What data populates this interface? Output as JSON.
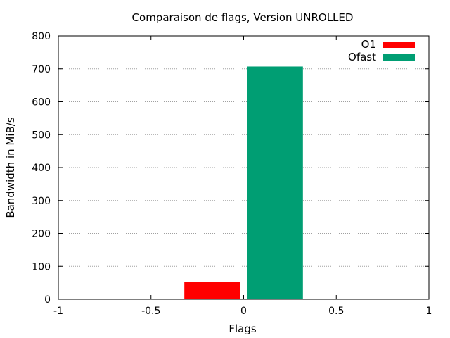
{
  "chart_data": {
    "type": "bar",
    "title": "Comparaison de flags, Version UNROLLED",
    "xlabel": "Flags",
    "ylabel": "Bandwidth in MiB/s",
    "xlim": [
      -1,
      1
    ],
    "ylim": [
      0,
      800
    ],
    "x_ticks": [
      "-1",
      "-0.5",
      "0",
      "0.5",
      "1"
    ],
    "y_ticks": [
      "0",
      "100",
      "200",
      "300",
      "400",
      "500",
      "600",
      "700",
      "800"
    ],
    "grid": "horizontal dotted",
    "legend_position": "top-right",
    "series": [
      {
        "name": "O1",
        "x_start": -0.32,
        "x_end": -0.02,
        "value": 53,
        "color": "#ff0000"
      },
      {
        "name": "Ofast",
        "x_start": 0.02,
        "x_end": 0.32,
        "value": 707,
        "color": "#009e73"
      }
    ]
  }
}
